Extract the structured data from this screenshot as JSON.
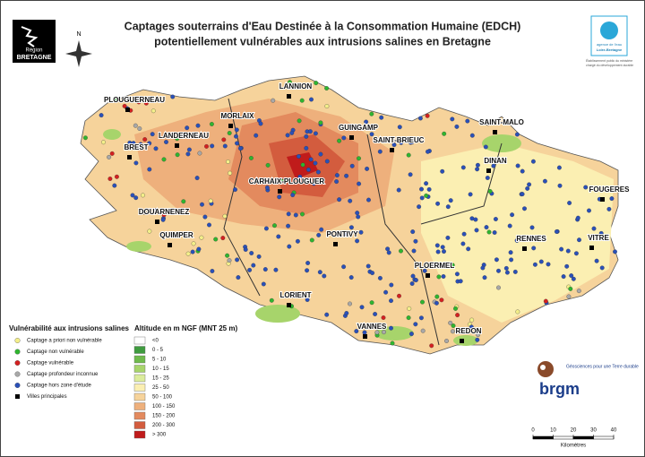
{
  "title": {
    "line1": "Captages souterrains d'Eau  Destinée à la Consommation Humaine (EDCH)",
    "line2": "potentiellement vulnérables aux intrusions salines en Bretagne"
  },
  "logos": {
    "region": {
      "line1": "Région",
      "line2": "BRETAGNE"
    },
    "agence": {
      "line1": "agence de l'eau",
      "line2": "Loire-Bretagne",
      "tagline1": "Établissement public du ministère",
      "tagline2": "chargé du développement durable"
    },
    "brgm": {
      "name": "brgm",
      "tagline": "Géosciences pour une Terre durable"
    }
  },
  "compass": "N",
  "cities": [
    "PLOUGUERNEAU",
    "LANNION",
    "MORLAIX",
    "LANDERNEAU",
    "GUINGAMP",
    "SAINT-MALO",
    "BREST",
    "SAINT-BRIEUC",
    "DINAN",
    "CARHAIX-PLOUGUER",
    "FOUGERES",
    "DOUARNENEZ",
    "QUIMPER",
    "PONTIVY",
    "RENNES",
    "VITRE",
    "PLOERMEL",
    "LORIENT",
    "VANNES",
    "REDON"
  ],
  "legend_vulnerability": {
    "title": "Vulnérabilité aux intrusions salines",
    "items": [
      {
        "label": "Captage a priori non vulnérable",
        "color": "#f4ef8a"
      },
      {
        "label": "Captage non vulnérable",
        "color": "#2fb52f"
      },
      {
        "label": "Captage vulnérable",
        "color": "#d42020"
      },
      {
        "label": "Captage profondeur inconnue",
        "color": "#a8a8a8"
      },
      {
        "label": "Captage hors zone d'étude",
        "color": "#2a50b8"
      },
      {
        "label": "Villes principales",
        "color": "#000000"
      }
    ]
  },
  "legend_altitude": {
    "title": "Altitude en m NGF (MNT 25 m)",
    "classes": [
      {
        "label": "<0",
        "color": "#ffffff"
      },
      {
        "label": "0 - 5",
        "color": "#3f9b3f"
      },
      {
        "label": "5 - 10",
        "color": "#6fba4c"
      },
      {
        "label": "10 - 15",
        "color": "#a7d46b"
      },
      {
        "label": "15 - 25",
        "color": "#dcec9c"
      },
      {
        "label": "25 - 50",
        "color": "#fbefb2"
      },
      {
        "label": "50 - 100",
        "color": "#f6d39b"
      },
      {
        "label": "100 - 150",
        "color": "#eeb07c"
      },
      {
        "label": "150 - 200",
        "color": "#e38a5e"
      },
      {
        "label": "200 - 300",
        "color": "#d35c3e"
      },
      {
        "label": "> 300",
        "color": "#c01b1b"
      }
    ]
  },
  "scale": {
    "ticks": [
      0,
      10,
      20,
      30,
      40
    ],
    "unit": "Kilomètres"
  }
}
